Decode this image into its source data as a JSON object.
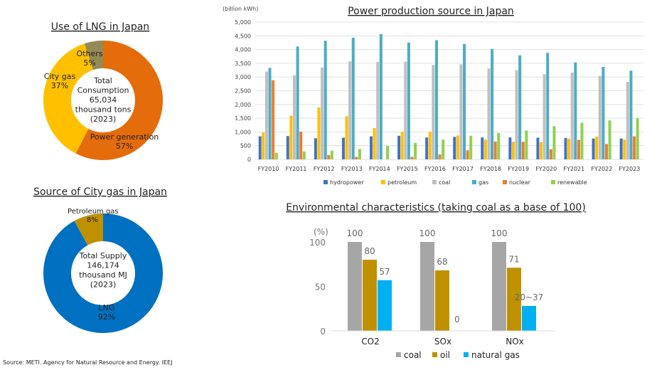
{
  "colors": {
    "hydropower": "#4472c4",
    "petroleum": "#ffc000",
    "coal": "#bfbfbf",
    "gas": "#4bacc6",
    "nuclear": "#ed7d31",
    "renewable": "#92d050",
    "lng_power": "#e46c0a",
    "lng_citygas": "#ffc000",
    "lng_others": "#948a54",
    "cg_lng": "#0070c0",
    "cg_petro": "#bf9000",
    "env_coal": "#a6a6a6",
    "env_oil": "#bf9000",
    "env_gas": "#00b0f0"
  },
  "source_note": "Source: METI. Agency for Natural Resource and Energy. IEEJ",
  "chart_data": [
    {
      "id": "lng",
      "type": "pie",
      "title": "Use of LNG in Japan",
      "center_lines": [
        "Total",
        "Consumption",
        "65,034",
        "thousand tons",
        "(2023)"
      ],
      "slices": [
        {
          "name": "Power generation",
          "value": 57,
          "label": "57%"
        },
        {
          "name": "City gas",
          "value": 37,
          "label": "37%"
        },
        {
          "name": "Others",
          "value": 5,
          "label": "5%"
        }
      ]
    },
    {
      "id": "citygas",
      "type": "pie",
      "title": "Source of City gas in Japan",
      "center_lines": [
        "Total Supply",
        "146,174",
        "thousand MJ",
        "(2023)"
      ],
      "slices": [
        {
          "name": "LNG",
          "value": 92,
          "label": "92%"
        },
        {
          "name": "Petroleum gas",
          "value": 8,
          "label": "8%"
        }
      ]
    },
    {
      "id": "power",
      "type": "bar",
      "title": "Power production source in Japan",
      "ylabel": "(billion kWh)",
      "ylim": [
        0,
        5000
      ],
      "yticks": [
        0,
        500,
        1000,
        1500,
        2000,
        2500,
        3000,
        3500,
        4000,
        4500,
        5000
      ],
      "ytick_labels": [
        "0",
        "500",
        "1,000",
        "1,500",
        "2,000",
        "2,500",
        "3,000",
        "3,500",
        "4,000",
        "4,500",
        "5,000"
      ],
      "categories": [
        "FY2010",
        "FY2011",
        "FY2012",
        "FY2013",
        "FY2014",
        "FY2015",
        "FY2016",
        "FY2017",
        "FY2018",
        "FY2019",
        "FY2020",
        "FY2021",
        "FY2022",
        "FY2023"
      ],
      "series": [
        {
          "name": "hydropower",
          "values": [
            840,
            850,
            770,
            790,
            840,
            860,
            800,
            820,
            800,
            800,
            790,
            780,
            760,
            760
          ]
        },
        {
          "name": "petroleum",
          "values": [
            980,
            1590,
            1890,
            1570,
            1140,
            1000,
            1000,
            870,
            720,
            640,
            630,
            750,
            830,
            720
          ]
        },
        {
          "name": "coal",
          "values": [
            3200,
            3060,
            3350,
            3570,
            3550,
            3560,
            3440,
            3460,
            3310,
            3250,
            3100,
            3160,
            3040,
            2820
          ]
        },
        {
          "name": "gas",
          "values": [
            3330,
            4110,
            4320,
            4430,
            4560,
            4250,
            4340,
            4200,
            4020,
            3790,
            3880,
            3530,
            3370,
            3230
          ]
        },
        {
          "name": "nuclear",
          "values": [
            2880,
            1010,
            160,
            90,
            0,
            90,
            180,
            330,
            650,
            640,
            370,
            710,
            560,
            840
          ]
        },
        {
          "name": "renewable",
          "values": [
            240,
            290,
            320,
            380,
            490,
            600,
            720,
            860,
            960,
            1050,
            1210,
            1330,
            1420,
            1500
          ]
        }
      ],
      "legend": [
        "hydropower",
        "petroleum",
        "coal",
        "gas",
        "nuclear",
        "renewable"
      ]
    },
    {
      "id": "env",
      "type": "bar",
      "title": "Environmental characteristics (taking coal as a base of 100)",
      "ylabel": "(%)",
      "ylim": [
        0,
        100
      ],
      "yticks": [
        0,
        50,
        100
      ],
      "ytick_labels": [
        "0",
        "50",
        "100"
      ],
      "categories": [
        "CO2",
        "SOx",
        "NOx"
      ],
      "series": [
        {
          "name": "coal",
          "values": [
            100,
            100,
            100
          ],
          "labels": [
            "100",
            "100",
            "100"
          ]
        },
        {
          "name": "oil",
          "values": [
            80,
            68,
            71
          ],
          "labels": [
            "80",
            "68",
            "71"
          ]
        },
        {
          "name": "natural gas",
          "values": [
            57,
            0,
            28
          ],
          "labels": [
            "57",
            "0",
            "20~37"
          ]
        }
      ],
      "legend": [
        "coal",
        "oil",
        "natural gas"
      ]
    }
  ]
}
